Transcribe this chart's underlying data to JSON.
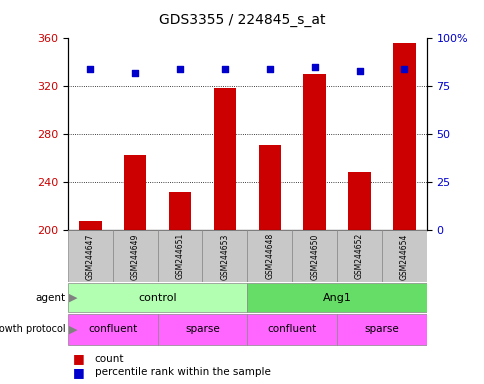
{
  "title": "GDS3355 / 224845_s_at",
  "samples": [
    "GSM244647",
    "GSM244649",
    "GSM244651",
    "GSM244653",
    "GSM244648",
    "GSM244650",
    "GSM244652",
    "GSM244654"
  ],
  "count_values": [
    208,
    263,
    232,
    319,
    271,
    330,
    249,
    356
  ],
  "percentile_values": [
    84,
    82,
    84,
    84,
    84,
    85,
    83,
    84
  ],
  "ymin": 200,
  "ymax": 360,
  "y_ticks": [
    200,
    240,
    280,
    320,
    360
  ],
  "y_right_ticks": [
    0,
    25,
    50,
    75,
    100
  ],
  "y_right_labels": [
    "0",
    "25",
    "50",
    "75",
    "100%"
  ],
  "bar_color": "#cc0000",
  "dot_color": "#0000cc",
  "color_light_green": "#b2ffb2",
  "color_green": "#66dd66",
  "color_magenta": "#ff66ff",
  "color_gray_box": "#c8c8c8",
  "legend_count_color": "#cc0000",
  "legend_dot_color": "#0000cc",
  "left_axis_color": "#cc0000",
  "right_axis_color": "#0000cc"
}
